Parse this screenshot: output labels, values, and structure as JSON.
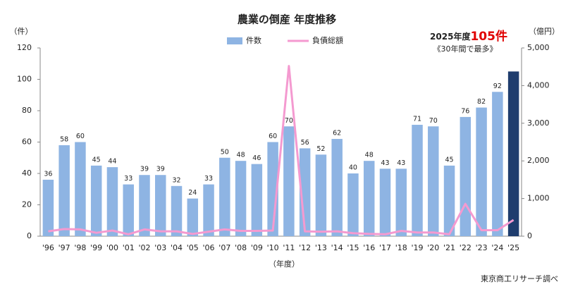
{
  "chart_data": {
    "type": "bar",
    "title": "農業の倒産 年度推移",
    "y_label": "（件）",
    "y2_label": "（億円）",
    "x_label": "（年度）",
    "source": "東京商工リサーチ調べ",
    "annotation": {
      "prefix": "2025年度",
      "highlight": "105件",
      "note": "《30年間で最多》"
    },
    "categories": [
      "'96",
      "'97",
      "'98",
      "'99",
      "'00",
      "'01",
      "'02",
      "'03",
      "'04",
      "'05",
      "'06",
      "'07",
      "'08",
      "'09",
      "'10",
      "'11",
      "'12",
      "'13",
      "'14",
      "'15",
      "'16",
      "'17",
      "'18",
      "'19",
      "'20",
      "'21",
      "'22",
      "'23",
      "'24",
      "'25"
    ],
    "series": [
      {
        "name": "件数",
        "type": "bar",
        "color": "#8eb4e3",
        "colors": [
          "#8eb4e3",
          "#8eb4e3",
          "#8eb4e3",
          "#8eb4e3",
          "#8eb4e3",
          "#8eb4e3",
          "#8eb4e3",
          "#8eb4e3",
          "#8eb4e3",
          "#8eb4e3",
          "#8eb4e3",
          "#8eb4e3",
          "#8eb4e3",
          "#8eb4e3",
          "#8eb4e3",
          "#8eb4e3",
          "#8eb4e3",
          "#8eb4e3",
          "#8eb4e3",
          "#8eb4e3",
          "#8eb4e3",
          "#8eb4e3",
          "#8eb4e3",
          "#8eb4e3",
          "#8eb4e3",
          "#8eb4e3",
          "#8eb4e3",
          "#8eb4e3",
          "#8eb4e3",
          "#1f3d6e"
        ],
        "values": [
          36,
          58,
          60,
          45,
          44,
          33,
          39,
          39,
          32,
          24,
          33,
          50,
          48,
          46,
          60,
          70,
          56,
          52,
          62,
          40,
          48,
          43,
          43,
          71,
          70,
          45,
          76,
          82,
          92,
          105
        ],
        "value_labels": [
          "36",
          "58",
          "60",
          "45",
          "44",
          "33",
          "39",
          "39",
          "32",
          "24",
          "33",
          "50",
          "48",
          "46",
          "60",
          "70",
          "56",
          "52",
          "62",
          "40",
          "48",
          "43",
          "43",
          "71",
          "70",
          "45",
          "76",
          "82",
          "92",
          null
        ]
      },
      {
        "name": "負債総額",
        "type": "line",
        "axis": "y2",
        "color": "#f49ad0",
        "values": [
          130,
          190,
          180,
          90,
          150,
          50,
          180,
          130,
          130,
          60,
          120,
          180,
          140,
          140,
          150,
          4520,
          130,
          120,
          130,
          80,
          60,
          50,
          140,
          100,
          100,
          50,
          860,
          160,
          160,
          430
        ]
      }
    ],
    "ylim": [
      0,
      120
    ],
    "yticks": [
      0,
      20,
      40,
      60,
      80,
      100,
      120
    ],
    "y2lim": [
      0,
      5000
    ],
    "y2ticks": [
      0,
      {
        "value": 1000,
        "label": "1,000"
      },
      {
        "value": 2000,
        "label": "2,000"
      },
      {
        "value": 3000,
        "label": "3,000"
      },
      {
        "value": 4000,
        "label": "4,000"
      },
      {
        "value": 5000,
        "label": "5,000"
      }
    ]
  }
}
